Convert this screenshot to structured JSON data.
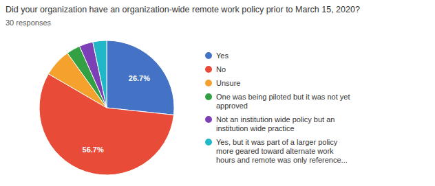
{
  "chart_data": {
    "type": "pie",
    "title": "Did your organization have an organization-wide remote work policy prior to March 15, 2020?",
    "subtitle": "30 responses",
    "categories": [
      "Yes",
      "No",
      "Unsure",
      "One was being piloted but it was not yet\napproved",
      "Not an institution wide policy but an\ninstitution wide practice",
      "Yes, but it was part of a larger policy\nmore geared toward alternate work\nhours and remote was only reference..."
    ],
    "values": [
      26.7,
      56.7,
      6.7,
      3.3,
      3.3,
      3.3
    ],
    "colors": [
      "#4472c4",
      "#e84b37",
      "#f4a22d",
      "#33a043",
      "#7d3fb5",
      "#20b8c8"
    ],
    "data_labels": true,
    "value_labels": [
      "26.7%",
      "56.7%",
      null,
      null,
      null,
      null
    ],
    "legend": "right"
  }
}
